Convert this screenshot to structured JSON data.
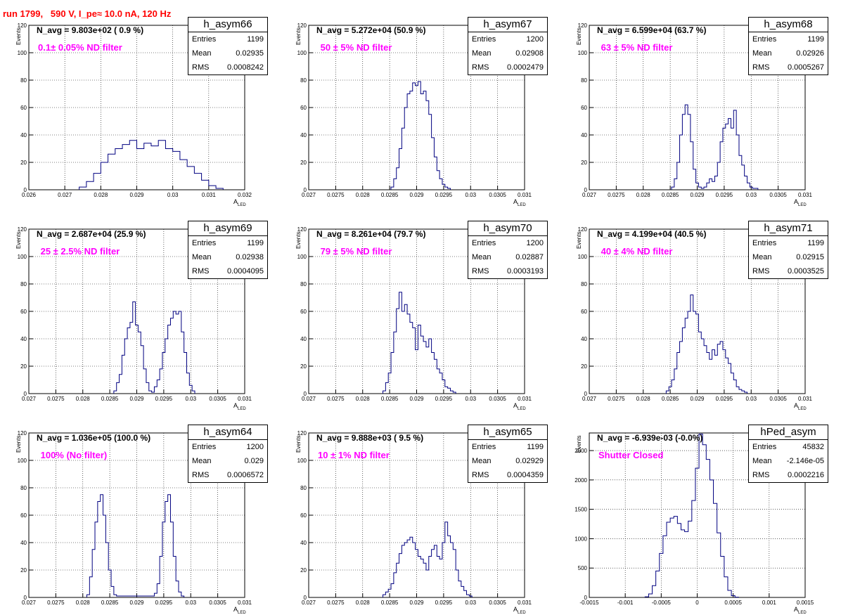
{
  "run_title": "run 1799,   590 V, I_pe≈ 10.0 nA, 120 Hz",
  "axis_labels": {
    "y": "Events",
    "x": "A",
    "x_sub": "LED"
  },
  "stat_labels": {
    "entries": "Entries",
    "mean": "Mean",
    "rms": "RMS"
  },
  "colors": {
    "histogram": "#000080",
    "title": "#ff0000",
    "filter": "#ff00ff",
    "grid": "#000000"
  },
  "panels": [
    {
      "name": "h_asym66",
      "n_avg": "N_avg = 9.803e+02 ( 0.9 %)",
      "filter": "0.1± 0.05% ND filter",
      "entries": "1199",
      "mean": "0.02935",
      "rms": "0.0008242",
      "xmin": 0.026,
      "xmax": 0.032,
      "ymax": 120,
      "xticks": [
        "0.026",
        "0.027",
        "0.028",
        "0.029",
        "0.03",
        "0.031",
        "0.032"
      ],
      "xtick_vals": [
        0.026,
        0.027,
        0.028,
        0.029,
        0.03,
        0.031,
        0.032
      ],
      "yticks": [
        0,
        20,
        40,
        60,
        80,
        100,
        120
      ]
    },
    {
      "name": "h_asym67",
      "n_avg": "N_avg = 5.272e+04 (50.9 %)",
      "filter": " 50 ± 5% ND filter",
      "entries": "1200",
      "mean": "0.02908",
      "rms": "0.0002479",
      "xmin": 0.027,
      "xmax": 0.031,
      "ymax": 120,
      "xticks": [
        "0.027",
        "0.0275",
        "0.028",
        "0.0285",
        "0.029",
        "0.0295",
        "0.03",
        "0.0305",
        "0.031"
      ],
      "xtick_vals": [
        0.027,
        0.0275,
        0.028,
        0.0285,
        0.029,
        0.0295,
        0.03,
        0.0305,
        0.031
      ],
      "yticks": [
        0,
        20,
        40,
        60,
        80,
        100,
        120
      ]
    },
    {
      "name": "h_asym68",
      "n_avg": "N_avg = 6.599e+04 (63.7 %)",
      "filter": " 63 ± 5% ND filter",
      "entries": "1199",
      "mean": "0.02926",
      "rms": "0.0005267",
      "xmin": 0.027,
      "xmax": 0.031,
      "ymax": 120,
      "xticks": [
        "0.027",
        "0.0275",
        "0.028",
        "0.0285",
        "0.029",
        "0.0295",
        "0.03",
        "0.0305",
        "0.031"
      ],
      "xtick_vals": [
        0.027,
        0.0275,
        0.028,
        0.0285,
        0.029,
        0.0295,
        0.03,
        0.0305,
        0.031
      ],
      "yticks": [
        0,
        20,
        40,
        60,
        80,
        100,
        120
      ]
    },
    {
      "name": "h_asym69",
      "n_avg": "N_avg = 2.687e+04 (25.9 %)",
      "filter": " 25 ± 2.5% ND filter",
      "entries": "1199",
      "mean": "0.02938",
      "rms": "0.0004095",
      "xmin": 0.027,
      "xmax": 0.031,
      "ymax": 120,
      "xticks": [
        "0.027",
        "0.0275",
        "0.028",
        "0.0285",
        "0.029",
        "0.0295",
        "0.03",
        "0.0305",
        "0.031"
      ],
      "xtick_vals": [
        0.027,
        0.0275,
        0.028,
        0.0285,
        0.029,
        0.0295,
        0.03,
        0.0305,
        0.031
      ],
      "yticks": [
        0,
        20,
        40,
        60,
        80,
        100,
        120
      ]
    },
    {
      "name": "h_asym70",
      "n_avg": "N_avg = 8.261e+04 (79.7 %)",
      "filter": " 79 ± 5% ND filter",
      "entries": "1200",
      "mean": "0.02887",
      "rms": "0.0003193",
      "xmin": 0.027,
      "xmax": 0.031,
      "ymax": 120,
      "xticks": [
        "0.027",
        "0.0275",
        "0.028",
        "0.0285",
        "0.029",
        "0.0295",
        "0.03",
        "0.0305",
        "0.031"
      ],
      "xtick_vals": [
        0.027,
        0.0275,
        0.028,
        0.0285,
        0.029,
        0.0295,
        0.03,
        0.0305,
        0.031
      ],
      "yticks": [
        0,
        20,
        40,
        60,
        80,
        100,
        120
      ]
    },
    {
      "name": "h_asym71",
      "n_avg": "N_avg = 4.199e+04 (40.5 %)",
      "filter": " 40 ± 4% ND filter",
      "entries": "1199",
      "mean": "0.02915",
      "rms": "0.0003525",
      "xmin": 0.027,
      "xmax": 0.031,
      "ymax": 120,
      "xticks": [
        "0.027",
        "0.0275",
        "0.028",
        "0.0285",
        "0.029",
        "0.0295",
        "0.03",
        "0.0305",
        "0.031"
      ],
      "xtick_vals": [
        0.027,
        0.0275,
        0.028,
        0.0285,
        0.029,
        0.0295,
        0.03,
        0.0305,
        0.031
      ],
      "yticks": [
        0,
        20,
        40,
        60,
        80,
        100,
        120
      ]
    },
    {
      "name": "h_asym64",
      "n_avg": "N_avg = 1.036e+05 (100.0 %)",
      "filter": " 100% (No filter)",
      "entries": "1200",
      "mean": "0.029",
      "rms": "0.0006572",
      "xmin": 0.027,
      "xmax": 0.031,
      "ymax": 120,
      "xticks": [
        "0.027",
        "0.0275",
        "0.028",
        "0.0285",
        "0.029",
        "0.0295",
        "0.03",
        "0.0305",
        "0.031"
      ],
      "xtick_vals": [
        0.027,
        0.0275,
        0.028,
        0.0285,
        0.029,
        0.0295,
        0.03,
        0.0305,
        0.031
      ],
      "yticks": [
        0,
        20,
        40,
        60,
        80,
        100,
        120
      ]
    },
    {
      "name": "h_asym65",
      "n_avg": "N_avg = 9.888e+03 ( 9.5 %)",
      "filter": "10 ± 1% ND filter",
      "entries": "1199",
      "mean": "0.02929",
      "rms": "0.0004359",
      "xmin": 0.027,
      "xmax": 0.031,
      "ymax": 120,
      "xticks": [
        "0.027",
        "0.0275",
        "0.028",
        "0.0285",
        "0.029",
        "0.0295",
        "0.03",
        "0.0305",
        "0.031"
      ],
      "xtick_vals": [
        0.027,
        0.0275,
        0.028,
        0.0285,
        0.029,
        0.0295,
        0.03,
        0.0305,
        0.031
      ],
      "yticks": [
        0,
        20,
        40,
        60,
        80,
        100,
        120
      ]
    },
    {
      "name": "hPed_asym",
      "n_avg": "N_avg = -6.939e-03 (-0.0%)",
      "filter": "Shutter Closed",
      "entries": "45832",
      "mean": "-2.146e-05",
      "rms": "0.0002216",
      "xmin": -0.0015,
      "xmax": 0.0015,
      "ymax": 2800,
      "xticks": [
        "-0.0015",
        "-0.001",
        "-0.0005",
        "0",
        "0.0005",
        "0.001",
        "0.0015"
      ],
      "xtick_vals": [
        -0.0015,
        -0.001,
        -0.0005,
        0,
        0.0005,
        0.001,
        0.0015
      ],
      "yticks": [
        0,
        500,
        1000,
        1500,
        2000,
        2500
      ]
    }
  ],
  "chart_data": [
    {
      "type": "bar",
      "title": "h_asym66",
      "xlabel": "A_LED",
      "ylabel": "Events",
      "xlim": [
        0.026,
        0.032
      ],
      "ylim": [
        0,
        120
      ],
      "x": [
        0.0275,
        0.0277,
        0.0279,
        0.0281,
        0.0283,
        0.0285,
        0.0287,
        0.0289,
        0.0291,
        0.0293,
        0.0295,
        0.0297,
        0.0299,
        0.0301,
        0.0303,
        0.0305,
        0.0307,
        0.0309,
        0.0311,
        0.0313
      ],
      "values": [
        2,
        6,
        12,
        20,
        26,
        30,
        33,
        36,
        30,
        34,
        32,
        36,
        30,
        28,
        22,
        17,
        12,
        7,
        3,
        1
      ]
    },
    {
      "type": "bar",
      "title": "h_asym67",
      "xlabel": "A_LED",
      "ylabel": "Events",
      "xlim": [
        0.027,
        0.031
      ],
      "ylim": [
        0,
        120
      ],
      "x": [
        0.02855,
        0.0286,
        0.02865,
        0.0287,
        0.02875,
        0.0288,
        0.02885,
        0.0289,
        0.02895,
        0.029,
        0.02905,
        0.0291,
        0.02915,
        0.0292,
        0.02925,
        0.0293,
        0.02935,
        0.0294,
        0.02945,
        0.0295,
        0.02955,
        0.0296
      ],
      "values": [
        2,
        8,
        16,
        30,
        45,
        60,
        70,
        72,
        78,
        76,
        79,
        70,
        72,
        65,
        55,
        38,
        24,
        14,
        8,
        4,
        2,
        1
      ]
    },
    {
      "type": "bar",
      "title": "h_asym68",
      "xlabel": "A_LED",
      "ylabel": "Events",
      "xlim": [
        0.027,
        0.031
      ],
      "ylim": [
        0,
        120
      ],
      "x": [
        0.02855,
        0.0286,
        0.02865,
        0.0287,
        0.02875,
        0.0288,
        0.02885,
        0.0289,
        0.02895,
        0.029,
        0.02905,
        0.0291,
        0.02915,
        0.0292,
        0.02925,
        0.0293,
        0.02935,
        0.0294,
        0.02945,
        0.0295,
        0.02955,
        0.0296,
        0.02965,
        0.0297,
        0.02975,
        0.0298,
        0.02985,
        0.0299,
        0.02995,
        0.03,
        0.03005,
        0.0301
      ],
      "values": [
        2,
        8,
        20,
        40,
        55,
        62,
        55,
        35,
        15,
        5,
        2,
        1,
        2,
        5,
        8,
        6,
        10,
        20,
        35,
        45,
        48,
        52,
        45,
        58,
        40,
        25,
        18,
        10,
        5,
        2,
        1,
        1
      ]
    },
    {
      "type": "bar",
      "title": "h_asym69",
      "xlabel": "A_LED",
      "ylabel": "Events",
      "xlim": [
        0.027,
        0.031
      ],
      "ylim": [
        0,
        120
      ],
      "x": [
        0.0286,
        0.02865,
        0.0287,
        0.02875,
        0.0288,
        0.02885,
        0.0289,
        0.02895,
        0.029,
        0.02905,
        0.0291,
        0.02915,
        0.0292,
        0.02925,
        0.0293,
        0.02935,
        0.0294,
        0.02945,
        0.0295,
        0.02955,
        0.0296,
        0.02965,
        0.0297,
        0.02975,
        0.0298,
        0.02985,
        0.0299,
        0.02995,
        0.03,
        0.03005
      ],
      "values": [
        2,
        8,
        14,
        28,
        40,
        48,
        52,
        67,
        50,
        45,
        35,
        18,
        8,
        2,
        1,
        5,
        10,
        18,
        30,
        40,
        50,
        55,
        60,
        58,
        60,
        45,
        30,
        15,
        6,
        2
      ]
    },
    {
      "type": "bar",
      "title": "h_asym70",
      "xlabel": "A_LED",
      "ylabel": "Events",
      "xlim": [
        0.027,
        0.031
      ],
      "ylim": [
        0,
        120
      ],
      "x": [
        0.0284,
        0.02845,
        0.0285,
        0.02855,
        0.0286,
        0.02865,
        0.0287,
        0.02875,
        0.0288,
        0.02885,
        0.0289,
        0.02895,
        0.029,
        0.02905,
        0.0291,
        0.02915,
        0.0292,
        0.02925,
        0.0293,
        0.02935,
        0.0294,
        0.02945,
        0.0295,
        0.02955,
        0.0296,
        0.02965,
        0.0297
      ],
      "values": [
        2,
        8,
        15,
        30,
        45,
        62,
        74,
        60,
        65,
        58,
        52,
        48,
        32,
        50,
        42,
        38,
        34,
        40,
        30,
        25,
        18,
        15,
        10,
        5,
        4,
        2,
        1
      ]
    },
    {
      "type": "bar",
      "title": "h_asym71",
      "xlabel": "A_LED",
      "ylabel": "Events",
      "xlim": [
        0.027,
        0.031
      ],
      "ylim": [
        0,
        120
      ],
      "x": [
        0.02845,
        0.0285,
        0.02855,
        0.0286,
        0.02865,
        0.0287,
        0.02875,
        0.0288,
        0.02885,
        0.0289,
        0.02895,
        0.029,
        0.02905,
        0.0291,
        0.02915,
        0.0292,
        0.02925,
        0.0293,
        0.02935,
        0.0294,
        0.02945,
        0.0295,
        0.02955,
        0.0296,
        0.02965,
        0.0297,
        0.02975,
        0.0298,
        0.02985,
        0.0299
      ],
      "values": [
        2,
        5,
        10,
        18,
        30,
        38,
        48,
        55,
        60,
        72,
        60,
        58,
        45,
        40,
        35,
        30,
        25,
        32,
        28,
        36,
        38,
        32,
        26,
        22,
        15,
        10,
        5,
        3,
        2,
        1
      ]
    },
    {
      "type": "bar",
      "title": "h_asym64",
      "xlabel": "A_LED",
      "ylabel": "Events",
      "xlim": [
        0.027,
        0.031
      ],
      "ylim": [
        0,
        120
      ],
      "x": [
        0.0281,
        0.02815,
        0.0282,
        0.02825,
        0.0283,
        0.02835,
        0.0284,
        0.02845,
        0.0285,
        0.02855,
        0.0286,
        0.02865,
        0.0287,
        0.0293,
        0.02935,
        0.0294,
        0.02945,
        0.0295,
        0.02955,
        0.0296,
        0.02965,
        0.0297,
        0.02975,
        0.0298,
        0.02985
      ],
      "values": [
        2,
        15,
        35,
        55,
        70,
        75,
        60,
        40,
        20,
        8,
        2,
        1,
        1,
        1,
        3,
        10,
        30,
        55,
        70,
        75,
        55,
        30,
        12,
        4,
        1
      ]
    },
    {
      "type": "bar",
      "title": "h_asym65",
      "xlabel": "A_LED",
      "ylabel": "Events",
      "xlim": [
        0.027,
        0.031
      ],
      "ylim": [
        0,
        120
      ],
      "x": [
        0.0284,
        0.02845,
        0.0285,
        0.02855,
        0.0286,
        0.02865,
        0.0287,
        0.02875,
        0.0288,
        0.02885,
        0.0289,
        0.02895,
        0.029,
        0.02905,
        0.0291,
        0.02915,
        0.0292,
        0.02925,
        0.0293,
        0.02935,
        0.0294,
        0.02945,
        0.0295,
        0.02955,
        0.0296,
        0.02965,
        0.0297,
        0.02975,
        0.0298,
        0.02985,
        0.0299,
        0.02995,
        0.03
      ],
      "values": [
        2,
        4,
        6,
        10,
        18,
        25,
        32,
        38,
        40,
        42,
        44,
        40,
        35,
        30,
        28,
        25,
        20,
        30,
        35,
        38,
        30,
        28,
        40,
        55,
        45,
        40,
        35,
        20,
        12,
        8,
        5,
        2,
        1
      ]
    },
    {
      "type": "bar",
      "title": "hPed_asym",
      "xlabel": "A_LED",
      "ylabel": "Events",
      "xlim": [
        -0.0015,
        0.0015
      ],
      "ylim": [
        0,
        2800
      ],
      "x": [
        -0.0007,
        -0.00065,
        -0.0006,
        -0.00055,
        -0.0005,
        -0.00045,
        -0.0004,
        -0.00035,
        -0.0003,
        -0.00025,
        -0.0002,
        -0.00015,
        -0.0001,
        -5e-05,
        0,
        5e-05,
        0.0001,
        0.00015,
        0.0002,
        0.00025,
        0.0003,
        0.00035,
        0.0004,
        0.00045,
        0.0005,
        0.00055
      ],
      "values": [
        10,
        60,
        200,
        450,
        750,
        1050,
        1280,
        1350,
        1380,
        1260,
        1150,
        1120,
        1300,
        1650,
        2200,
        2780,
        2600,
        2350,
        2000,
        1600,
        1100,
        700,
        350,
        120,
        30,
        5
      ]
    }
  ]
}
